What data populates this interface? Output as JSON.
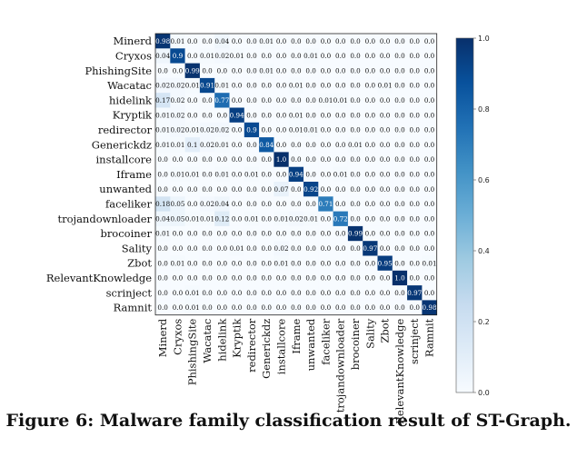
{
  "chart_data": {
    "type": "heatmap",
    "title": "Malware family classification result of ST-Graph",
    "labels": [
      "Minerd",
      "Cryxos",
      "PhishingSite",
      "Wacatac",
      "hidelink",
      "Kryptik",
      "redirector",
      "Generickdz",
      "installcore",
      "Iframe",
      "unwanted",
      "faceliker",
      "trojandownloader",
      "brocoiner",
      "Sality",
      "Zbot",
      "RelevantKnowledge",
      "scrinject",
      "Ramnit"
    ],
    "matrix": [
      [
        0.98,
        0.01,
        0.0,
        0.0,
        0.04,
        0.0,
        0.0,
        0.01,
        0.0,
        0.0,
        0.0,
        0.0,
        0.0,
        0.0,
        0.0,
        0.0,
        0.0,
        0.0,
        0.0
      ],
      [
        0.04,
        0.9,
        0.0,
        0.01,
        0.02,
        0.01,
        0.0,
        0.0,
        0.0,
        0.0,
        0.01,
        0.0,
        0.0,
        0.0,
        0.0,
        0.0,
        0.0,
        0.0,
        0.0
      ],
      [
        0.0,
        0.0,
        0.99,
        0.0,
        0.0,
        0.0,
        0.0,
        0.01,
        0.0,
        0.0,
        0.0,
        0.0,
        0.0,
        0.0,
        0.0,
        0.0,
        0.0,
        0.0,
        0.0
      ],
      [
        0.02,
        0.02,
        0.01,
        0.91,
        0.01,
        0.0,
        0.0,
        0.0,
        0.0,
        0.01,
        0.0,
        0.0,
        0.0,
        0.0,
        0.0,
        0.01,
        0.0,
        0.0,
        0.0
      ],
      [
        0.17,
        0.02,
        0.0,
        0.0,
        0.77,
        0.0,
        0.0,
        0.0,
        0.0,
        0.0,
        0.0,
        0.01,
        0.01,
        0.0,
        0.0,
        0.0,
        0.0,
        0.0,
        0.0
      ],
      [
        0.01,
        0.02,
        0.0,
        0.0,
        0.0,
        0.94,
        0.0,
        0.0,
        0.0,
        0.01,
        0.0,
        0.0,
        0.0,
        0.0,
        0.0,
        0.0,
        0.0,
        0.0,
        0.0
      ],
      [
        0.01,
        0.02,
        0.01,
        0.02,
        0.02,
        0.0,
        0.9,
        0.0,
        0.0,
        0.01,
        0.01,
        0.0,
        0.0,
        0.0,
        0.0,
        0.0,
        0.0,
        0.0,
        0.0
      ],
      [
        0.01,
        0.01,
        0.1,
        0.02,
        0.01,
        0.0,
        0.0,
        0.84,
        0.0,
        0.0,
        0.0,
        0.0,
        0.0,
        0.01,
        0.0,
        0.0,
        0.0,
        0.0,
        0.0
      ],
      [
        0.0,
        0.0,
        0.0,
        0.0,
        0.0,
        0.0,
        0.0,
        0.0,
        1.0,
        0.0,
        0.0,
        0.0,
        0.0,
        0.0,
        0.0,
        0.0,
        0.0,
        0.0,
        0.0
      ],
      [
        0.0,
        0.01,
        0.01,
        0.0,
        0.01,
        0.0,
        0.01,
        0.0,
        0.0,
        0.94,
        0.0,
        0.0,
        0.01,
        0.0,
        0.0,
        0.0,
        0.0,
        0.0,
        0.0
      ],
      [
        0.0,
        0.0,
        0.0,
        0.0,
        0.0,
        0.0,
        0.0,
        0.0,
        0.07,
        0.0,
        0.92,
        0.0,
        0.0,
        0.0,
        0.0,
        0.0,
        0.0,
        0.0,
        0.0
      ],
      [
        0.18,
        0.05,
        0.0,
        0.02,
        0.04,
        0.0,
        0.0,
        0.0,
        0.0,
        0.0,
        0.0,
        0.71,
        0.0,
        0.0,
        0.0,
        0.0,
        0.0,
        0.0,
        0.0
      ],
      [
        0.04,
        0.05,
        0.01,
        0.01,
        0.12,
        0.0,
        0.01,
        0.0,
        0.01,
        0.02,
        0.01,
        0.0,
        0.72,
        0.0,
        0.0,
        0.0,
        0.0,
        0.0,
        0.0
      ],
      [
        0.01,
        0.0,
        0.0,
        0.0,
        0.0,
        0.0,
        0.0,
        0.0,
        0.0,
        0.0,
        0.0,
        0.0,
        0.0,
        0.99,
        0.0,
        0.0,
        0.0,
        0.0,
        0.0
      ],
      [
        0.0,
        0.0,
        0.0,
        0.0,
        0.0,
        0.01,
        0.0,
        0.0,
        0.02,
        0.0,
        0.0,
        0.0,
        0.0,
        0.0,
        0.97,
        0.0,
        0.0,
        0.0,
        0.0
      ],
      [
        0.0,
        0.01,
        0.0,
        0.0,
        0.0,
        0.0,
        0.0,
        0.0,
        0.01,
        0.0,
        0.0,
        0.0,
        0.0,
        0.0,
        0.0,
        0.95,
        0.0,
        0.0,
        0.01
      ],
      [
        0.0,
        0.0,
        0.0,
        0.0,
        0.0,
        0.0,
        0.0,
        0.0,
        0.0,
        0.0,
        0.0,
        0.0,
        0.0,
        0.0,
        0.0,
        0.0,
        1.0,
        0.0,
        0.0
      ],
      [
        0.0,
        0.0,
        0.01,
        0.0,
        0.0,
        0.0,
        0.0,
        0.0,
        0.0,
        0.0,
        0.0,
        0.0,
        0.0,
        0.0,
        0.0,
        0.0,
        0.0,
        0.97,
        0.0
      ],
      [
        0.0,
        0.0,
        0.01,
        0.0,
        0.0,
        0.0,
        0.0,
        0.0,
        0.0,
        0.0,
        0.0,
        0.0,
        0.0,
        0.0,
        0.0,
        0.0,
        0.0,
        0.0,
        0.98
      ]
    ],
    "colorbar": {
      "min": 0.0,
      "max": 1.0,
      "ticks": [
        "0.0",
        "0.2",
        "0.4",
        "0.6",
        "0.8",
        "1.0"
      ],
      "colormap": "Blues"
    }
  },
  "caption": "Figure 6: Malware family classification result of ST-Graph.",
  "colors": {
    "low": "#f7fbff",
    "high": "#08306b",
    "text": "#111111"
  }
}
